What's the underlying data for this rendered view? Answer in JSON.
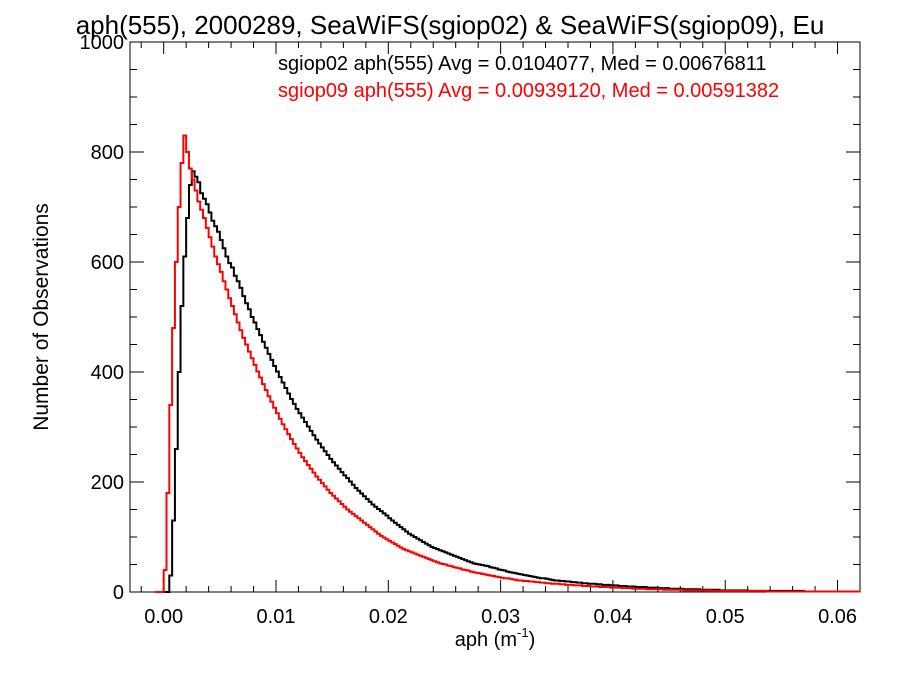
{
  "chart_data": {
    "type": "line",
    "title": "aph(555), 2000289, SeaWiFS(sgiop02) & SeaWiFS(sgiop09), Eu",
    "xlabel": "aph (m",
    "xlabel_sup": "-1",
    "xlabel_close": ")",
    "ylabel": "Number of Observations",
    "xlim": [
      -0.003,
      0.062
    ],
    "ylim": [
      0,
      1000
    ],
    "xticks": [
      {
        "value": 0.0,
        "label": "0.00"
      },
      {
        "value": 0.01,
        "label": "0.01"
      },
      {
        "value": 0.02,
        "label": "0.02"
      },
      {
        "value": 0.03,
        "label": "0.03"
      },
      {
        "value": 0.04,
        "label": "0.04"
      },
      {
        "value": 0.05,
        "label": "0.05"
      },
      {
        "value": 0.06,
        "label": "0.06"
      }
    ],
    "yticks": [
      {
        "value": 0,
        "label": "0"
      },
      {
        "value": 200,
        "label": "200"
      },
      {
        "value": 400,
        "label": "400"
      },
      {
        "value": 600,
        "label": "600"
      },
      {
        "value": 800,
        "label": "800"
      },
      {
        "value": 1000,
        "label": "1000"
      }
    ],
    "grid": false,
    "legend_placement": "top-right",
    "bin_width": 0.00025,
    "series": [
      {
        "name": "sgiop02 aph(555) Avg = 0.0104077, Med = 0.00676811",
        "color": "#000000",
        "x_start": 0.0,
        "values": [
          0,
          0,
          30,
          130,
          260,
          400,
          520,
          610,
          680,
          740,
          765,
          755,
          745,
          725,
          715,
          705,
          690,
          675,
          665,
          655,
          640,
          625,
          610,
          598,
          590,
          575,
          565,
          553,
          538,
          525,
          514,
          500,
          490,
          478,
          467,
          455,
          444,
          433,
          422,
          411,
          401,
          391,
          381,
          371,
          361,
          351,
          342,
          333,
          325,
          317,
          309,
          301,
          293,
          285,
          277,
          270,
          263,
          256,
          249,
          242,
          236,
          230,
          224,
          218,
          212,
          207,
          201,
          195,
          189,
          184,
          179,
          174,
          169,
          164,
          159,
          155,
          151,
          147,
          143,
          139,
          134,
          130,
          126,
          122,
          118,
          114,
          110,
          106,
          103,
          100,
          97,
          94,
          91,
          88,
          85,
          82,
          80,
          78,
          76,
          74,
          72,
          70,
          68,
          66,
          64,
          62,
          60,
          58,
          56,
          54,
          52,
          51,
          50,
          49,
          48,
          47,
          45,
          44,
          43,
          41,
          40,
          39,
          37,
          36,
          35,
          34,
          33,
          32,
          31,
          30,
          29,
          28,
          27,
          26,
          25,
          25,
          24,
          23,
          22,
          21,
          21,
          20,
          20,
          19,
          19,
          18,
          18,
          17,
          17,
          16,
          16,
          15,
          15,
          15,
          14,
          14,
          13,
          13,
          13,
          12,
          12,
          12,
          11,
          11,
          11,
          10,
          10,
          10,
          9,
          9,
          9,
          9,
          8,
          8,
          8,
          8,
          7,
          7,
          7,
          7,
          6,
          6,
          6,
          6,
          6,
          5,
          5,
          5,
          5,
          5,
          5,
          4,
          4,
          4,
          4,
          4,
          4,
          4,
          3,
          3,
          3,
          3,
          3,
          3,
          3,
          3,
          3,
          3,
          2,
          2,
          2,
          2,
          2,
          2,
          2,
          2,
          2,
          2,
          2,
          2,
          2,
          2,
          2,
          2,
          2,
          2,
          2,
          2,
          1,
          1,
          1,
          1,
          1,
          1,
          1,
          1,
          1,
          1,
          1,
          1,
          1,
          1,
          1,
          1,
          1,
          1,
          1,
          1,
          1,
          1,
          1,
          1,
          1,
          1,
          1,
          1,
          1,
          1,
          1,
          1,
          1,
          1,
          1,
          1
        ]
      },
      {
        "name": "sgiop09 aph(555) Avg = 0.00939120, Med = 0.00591382",
        "color": "#ff0000",
        "x_start": -0.0005,
        "values": [
          0,
          0,
          40,
          180,
          340,
          480,
          600,
          700,
          780,
          830,
          800,
          770,
          750,
          730,
          710,
          695,
          680,
          662,
          645,
          628,
          610,
          596,
          582,
          565,
          550,
          534,
          520,
          505,
          490,
          476,
          462,
          450,
          437,
          425,
          413,
          401,
          390,
          378,
          367,
          356,
          346,
          335,
          325,
          315,
          305,
          296,
          287,
          278,
          269,
          261,
          253,
          245,
          238,
          231,
          224,
          217,
          210,
          204,
          198,
          192,
          186,
          180,
          175,
          170,
          165,
          160,
          155,
          150,
          146,
          142,
          138,
          134,
          130,
          126,
          122,
          118,
          114,
          110,
          106,
          102,
          99,
          96,
          93,
          90,
          87,
          84,
          81,
          78,
          76,
          74,
          72,
          70,
          68,
          66,
          64,
          62,
          60,
          58,
          56,
          54,
          52,
          51,
          50,
          48,
          47,
          45,
          44,
          43,
          41,
          40,
          39,
          37,
          36,
          35,
          34,
          33,
          32,
          31,
          30,
          29,
          28,
          27,
          26,
          25,
          25,
          24,
          23,
          22,
          21,
          21,
          20,
          20,
          19,
          19,
          18,
          18,
          17,
          17,
          16,
          16,
          15,
          15,
          15,
          14,
          14,
          13,
          13,
          13,
          12,
          12,
          12,
          11,
          11,
          11,
          10,
          10,
          10,
          9,
          9,
          9,
          9,
          8,
          8,
          8,
          8,
          7,
          7,
          7,
          7,
          6,
          6,
          6,
          6,
          6,
          5,
          5,
          5,
          5,
          5,
          5,
          4,
          4,
          4,
          4,
          4,
          4,
          4,
          3,
          3,
          3,
          3,
          3,
          3,
          3,
          3,
          3,
          3,
          2,
          2,
          2,
          2,
          2,
          2,
          2,
          2,
          2,
          2,
          2,
          2,
          2,
          2,
          2,
          2,
          2,
          2,
          2,
          2,
          1,
          1,
          1,
          1,
          1,
          1,
          1,
          1,
          1,
          1,
          1,
          1,
          1,
          1,
          1,
          1,
          1,
          1,
          1,
          1,
          1,
          1,
          1,
          1,
          1,
          1,
          1,
          1,
          1,
          1,
          1,
          1,
          1,
          1,
          1,
          1,
          1,
          1
        ]
      }
    ]
  }
}
